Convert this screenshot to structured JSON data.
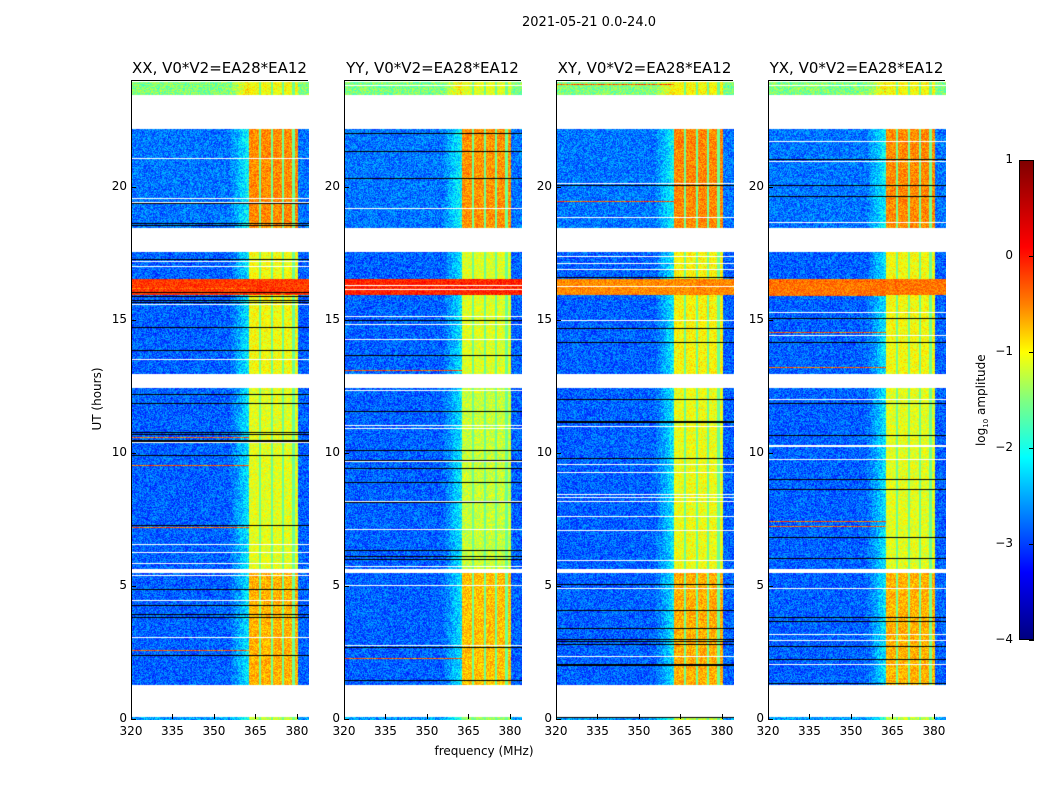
{
  "chart_data": {
    "type": "heatmap",
    "title": "2021-05-21 0.0-24.0",
    "xlabel": "frequency (MHz)",
    "ylabel": "UT (hours)",
    "xlim": [
      320,
      384
    ],
    "ylim": [
      0,
      24
    ],
    "xticks": [
      "320",
      "335",
      "350",
      "365",
      "380"
    ],
    "yticks": [
      "0",
      "5",
      "10",
      "15",
      "20"
    ],
    "panels": [
      {
        "title": "XX, V0*V2=EA28*EA12",
        "rfi_strength": 1.0,
        "strong_row_level": 0.1
      },
      {
        "title": "YY, V0*V2=EA28*EA12",
        "rfi_strength": 1.15,
        "strong_row_level": 0.2
      },
      {
        "title": "XY, V0*V2=EA28*EA12",
        "rfi_strength": 0.95,
        "strong_row_level": -0.3
      },
      {
        "title": "YX, V0*V2=EA28*EA12",
        "rfi_strength": 1.0,
        "strong_row_level": -0.2
      }
    ],
    "rfi_band_mhz": [
      362,
      380
    ],
    "rfi_subchannel_gaps_mhz": [
      366,
      370.5,
      374.5,
      378.2
    ],
    "flagged_hours": [
      [
        0.15,
        1.35
      ],
      [
        5.55,
        5.7
      ],
      [
        12.5,
        13.0
      ],
      [
        18.0,
        18.5
      ],
      [
        22.2,
        23.5
      ]
    ],
    "time_segments": [
      {
        "from": 0,
        "to": 0.15,
        "base": -2.6,
        "band": -1.2
      },
      {
        "from": 1.35,
        "to": 5.55,
        "base": -2.9,
        "band": -0.5
      },
      {
        "from": 5.7,
        "to": 12.5,
        "base": -2.9,
        "band": -1.0
      },
      {
        "from": 13.0,
        "to": 17.6,
        "base": -2.9,
        "band": -0.9
      },
      {
        "from": 16.0,
        "to": 16.6,
        "base": -0.2,
        "band": 0.2
      },
      {
        "from": 18.5,
        "to": 22.2,
        "base": -2.8,
        "band": -0.3
      },
      {
        "from": 23.5,
        "to": 24,
        "base": -1.5,
        "band": -0.9
      }
    ],
    "colorbar": {
      "label": "log10 amplitude",
      "range": [
        -4,
        1
      ],
      "ticks": [
        "1",
        "0",
        "−1",
        "−2",
        "−3",
        "−4"
      ],
      "colormap": "jet"
    }
  }
}
